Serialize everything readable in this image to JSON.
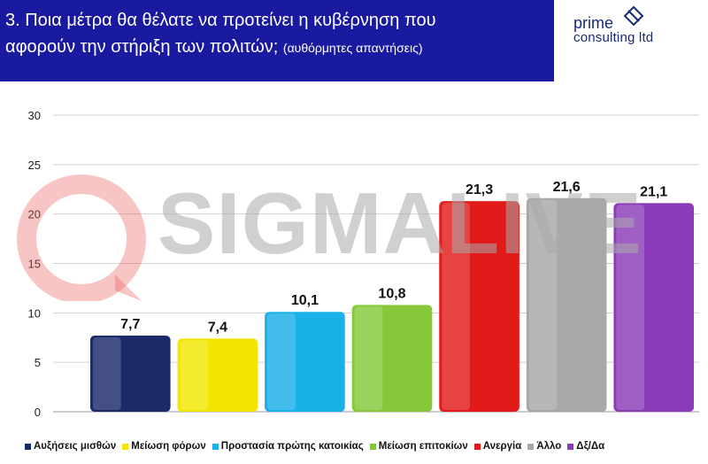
{
  "header": {
    "title_line1": "3. Ποια μέτρα θα θέλατε να προτείνει η κυβέρνηση που",
    "title_line2_main": "αφορούν την στήριξη των πολιτών;",
    "title_line2_sub": "(αυθόρμητες απαντήσεις)",
    "background_color": "#1a1aa0"
  },
  "logo": {
    "line1": "prime",
    "line2": "consulting ltd"
  },
  "watermark": {
    "text": "SIGMALIVE",
    "icon": "sigmalive-logo-icon"
  },
  "chart_data": {
    "type": "bar",
    "title": "",
    "xlabel": "",
    "ylabel": "",
    "ylim": [
      0,
      30
    ],
    "yticks": [
      0,
      5,
      10,
      15,
      20,
      25,
      30
    ],
    "grid": true,
    "legend_position": "bottom",
    "data_labels": [
      "7,7",
      "7,4",
      "10,1",
      "10,8",
      "21,3",
      "21,6",
      "21,1"
    ],
    "categories": [
      "Αυξήσεις μισθών",
      "Μείωση φόρων",
      "Προστασία πρώτης κατοικίας",
      "Μείωση επιτοκίων",
      "Ανεργία",
      "Άλλο",
      "Δξ/Δα"
    ],
    "values": [
      7.7,
      7.4,
      10.1,
      10.8,
      21.3,
      21.6,
      21.1
    ],
    "colors": [
      "#1c2a6a",
      "#f2e600",
      "#1ab0e8",
      "#86c83a",
      "#e31a1a",
      "#a8a8a8",
      "#8a3cb8"
    ]
  }
}
